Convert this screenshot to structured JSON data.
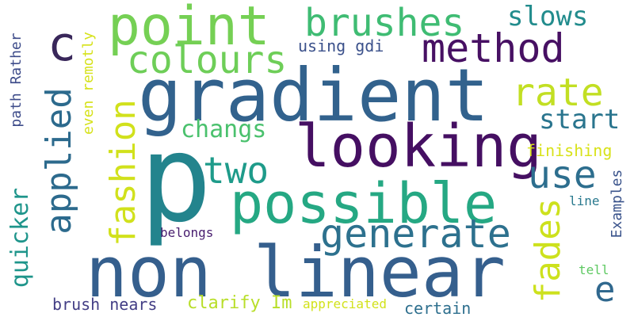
{
  "words": [
    {
      "id": "gradient",
      "text": "gradient",
      "color": "#32628d",
      "vertical": false
    },
    {
      "id": "p",
      "text": "p",
      "color": "#23848d",
      "vertical": false
    },
    {
      "id": "non-linear",
      "text": "non linear",
      "color": "#355f8d",
      "vertical": false
    },
    {
      "id": "looking",
      "text": "looking",
      "color": "#450f62",
      "vertical": false
    },
    {
      "id": "possible",
      "text": "possible",
      "color": "#25a883",
      "vertical": false
    },
    {
      "id": "point",
      "text": "point",
      "color": "#75d054",
      "vertical": false
    },
    {
      "id": "brushes",
      "text": "brushes",
      "color": "#3fbc73",
      "vertical": false
    },
    {
      "id": "colours",
      "text": "colours",
      "color": "#6ece58",
      "vertical": false
    },
    {
      "id": "method",
      "text": "method",
      "color": "#471063",
      "vertical": false
    },
    {
      "id": "generate",
      "text": "generate",
      "color": "#2d718e",
      "vertical": false
    },
    {
      "id": "c",
      "text": "c",
      "color": "#39275a",
      "vertical": false
    },
    {
      "id": "applied",
      "text": "applied",
      "color": "#2c6a8d",
      "vertical": true
    },
    {
      "id": "fashion",
      "text": "fashion",
      "color": "#d1e11c",
      "vertical": true
    },
    {
      "id": "two",
      "text": "two",
      "color": "#1e9b8a",
      "vertical": false
    },
    {
      "id": "use",
      "text": "use",
      "color": "#2d6e8e",
      "vertical": false
    },
    {
      "id": "rate",
      "text": "rate",
      "color": "#c2df23",
      "vertical": false
    },
    {
      "id": "start",
      "text": "start",
      "color": "#2a758e",
      "vertical": false
    },
    {
      "id": "changs",
      "text": "changs",
      "color": "#4ac16d",
      "vertical": false
    },
    {
      "id": "fades",
      "text": "fades",
      "color": "#cde11d",
      "vertical": true
    },
    {
      "id": "e",
      "text": "e",
      "color": "#30688e",
      "vertical": false
    },
    {
      "id": "slows",
      "text": "slows",
      "color": "#228c8d",
      "vertical": false
    },
    {
      "id": "quicker",
      "text": "quicker",
      "color": "#1f958b",
      "vertical": true
    },
    {
      "id": "using-gdi",
      "text": "using gdi",
      "color": "#3b518b",
      "vertical": false
    },
    {
      "id": "even-remotly",
      "text": "even remotly",
      "color": "#d6e21a",
      "vertical": true
    },
    {
      "id": "path-rather",
      "text": "path Rather",
      "color": "#3e4c8a",
      "vertical": true
    },
    {
      "id": "finishing",
      "text": "finishing",
      "color": "#d8e219",
      "vertical": false
    },
    {
      "id": "examples",
      "text": "Examples",
      "color": "#3a538b",
      "vertical": true
    },
    {
      "id": "line",
      "text": "line",
      "color": "#29798e",
      "vertical": false
    },
    {
      "id": "belongs",
      "text": "belongs",
      "color": "#481d6f",
      "vertical": false
    },
    {
      "id": "tell",
      "text": "tell",
      "color": "#5ec962",
      "vertical": false
    },
    {
      "id": "brush-nears",
      "text": "brush nears",
      "color": "#433e85",
      "vertical": false
    },
    {
      "id": "clarify-im",
      "text": "clarify Im",
      "color": "#b8de29",
      "vertical": false
    },
    {
      "id": "appreciated",
      "text": "appreciated",
      "color": "#d2e21b",
      "vertical": false
    },
    {
      "id": "certain",
      "text": "certain",
      "color": "#2e6f8e",
      "vertical": false
    }
  ]
}
